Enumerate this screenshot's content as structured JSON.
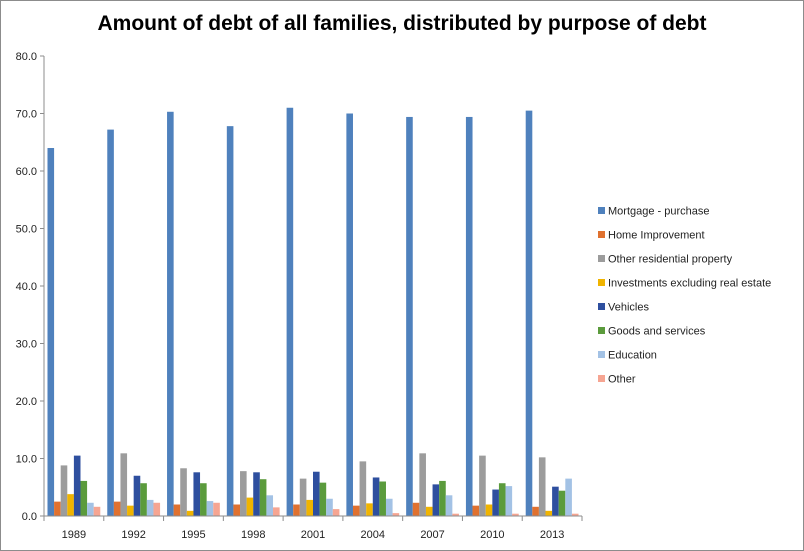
{
  "chart_data": {
    "type": "bar",
    "title": "Amount of debt of all families, distributed by purpose of debt",
    "xlabel": "",
    "ylabel": "",
    "ylim": [
      0,
      80
    ],
    "yticks": [
      "0.0",
      "10.0",
      "20.0",
      "30.0",
      "40.0",
      "50.0",
      "60.0",
      "70.0",
      "80.0"
    ],
    "grid": false,
    "legend_position": "right",
    "categories": [
      "1989",
      "1992",
      "1995",
      "1998",
      "2001",
      "2004",
      "2007",
      "2010",
      "2013"
    ],
    "series": [
      {
        "name": "Mortgage - purchase",
        "color": "#4f81bd",
        "values": [
          64.0,
          67.2,
          70.3,
          67.8,
          71.0,
          70.0,
          69.4,
          69.4,
          70.5
        ]
      },
      {
        "name": "Home Improvement",
        "color": "#e0712f",
        "values": [
          2.5,
          2.5,
          2.0,
          2.0,
          2.0,
          1.8,
          2.3,
          1.8,
          1.6
        ]
      },
      {
        "name": "Other residential property",
        "color": "#9c9c9c",
        "values": [
          8.8,
          10.9,
          8.3,
          7.8,
          6.5,
          9.5,
          10.9,
          10.5,
          10.2
        ]
      },
      {
        "name": "Investments excluding real estate",
        "color": "#f0b400",
        "values": [
          3.8,
          1.8,
          0.9,
          3.2,
          2.8,
          2.2,
          1.6,
          2.0,
          0.9
        ]
      },
      {
        "name": "Vehicles",
        "color": "#2e4f9f",
        "values": [
          10.5,
          7.0,
          7.6,
          7.6,
          7.7,
          6.7,
          5.5,
          4.6,
          5.1
        ]
      },
      {
        "name": "Goods and services",
        "color": "#5b9b3c",
        "values": [
          6.1,
          5.7,
          5.7,
          6.4,
          5.8,
          6.0,
          6.1,
          5.7,
          4.4
        ]
      },
      {
        "name": "Education",
        "color": "#a3c2e5",
        "values": [
          2.3,
          2.8,
          2.6,
          3.6,
          3.0,
          3.0,
          3.6,
          5.2,
          6.5
        ]
      },
      {
        "name": "Other",
        "color": "#f6a592",
        "values": [
          1.6,
          2.3,
          2.3,
          1.5,
          1.2,
          0.5,
          0.4,
          0.4,
          0.4
        ]
      }
    ]
  }
}
